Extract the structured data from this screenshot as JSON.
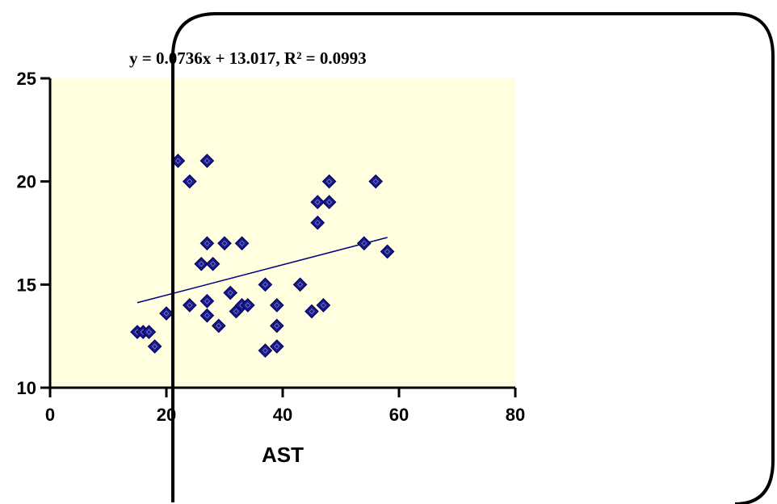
{
  "chart_data": {
    "type": "scatter",
    "xlabel": "AST",
    "ylabel": "",
    "xlim": [
      0,
      80
    ],
    "ylim": [
      10,
      25
    ],
    "x_ticks": [
      "0",
      "20",
      "40",
      "60",
      "80"
    ],
    "y_ticks": [
      "10",
      "15",
      "20",
      "25"
    ],
    "annotation": "y = 0.0736x + 13.017, R² = 0.0993",
    "grid": false,
    "colors": {
      "plot_background": "#FFFFE0",
      "marker_fill": "#1A1A8C",
      "marker_edge": "#000060",
      "trendline": "#000080",
      "overlay_border": "#000000"
    },
    "trendline": {
      "slope": 0.0736,
      "intercept": 13.017,
      "x_range": [
        15,
        58
      ]
    },
    "points": [
      {
        "x": 15,
        "y": 12.7
      },
      {
        "x": 16,
        "y": 12.7
      },
      {
        "x": 17,
        "y": 12.7
      },
      {
        "x": 18,
        "y": 12.0
      },
      {
        "x": 20,
        "y": 13.6
      },
      {
        "x": 22,
        "y": 21.0
      },
      {
        "x": 24,
        "y": 20.0
      },
      {
        "x": 27,
        "y": 21.0
      },
      {
        "x": 24,
        "y": 14.0
      },
      {
        "x": 26,
        "y": 16.0
      },
      {
        "x": 27,
        "y": 17.0
      },
      {
        "x": 28,
        "y": 16.0
      },
      {
        "x": 27,
        "y": 14.2
      },
      {
        "x": 27,
        "y": 13.5
      },
      {
        "x": 29,
        "y": 13.0
      },
      {
        "x": 30,
        "y": 17.0
      },
      {
        "x": 31,
        "y": 14.6
      },
      {
        "x": 32,
        "y": 13.7
      },
      {
        "x": 33,
        "y": 14.0
      },
      {
        "x": 33,
        "y": 17.0
      },
      {
        "x": 34,
        "y": 14.0
      },
      {
        "x": 37,
        "y": 15.0
      },
      {
        "x": 37,
        "y": 11.8
      },
      {
        "x": 39,
        "y": 12.0
      },
      {
        "x": 39,
        "y": 13.0
      },
      {
        "x": 39,
        "y": 14.0
      },
      {
        "x": 43,
        "y": 15.0
      },
      {
        "x": 45,
        "y": 13.7
      },
      {
        "x": 46,
        "y": 18.0
      },
      {
        "x": 46,
        "y": 19.0
      },
      {
        "x": 47,
        "y": 14.0
      },
      {
        "x": 48,
        "y": 19.0
      },
      {
        "x": 48,
        "y": 20.0
      },
      {
        "x": 54,
        "y": 17.0
      },
      {
        "x": 56,
        "y": 20.0
      },
      {
        "x": 58,
        "y": 16.6
      }
    ]
  }
}
